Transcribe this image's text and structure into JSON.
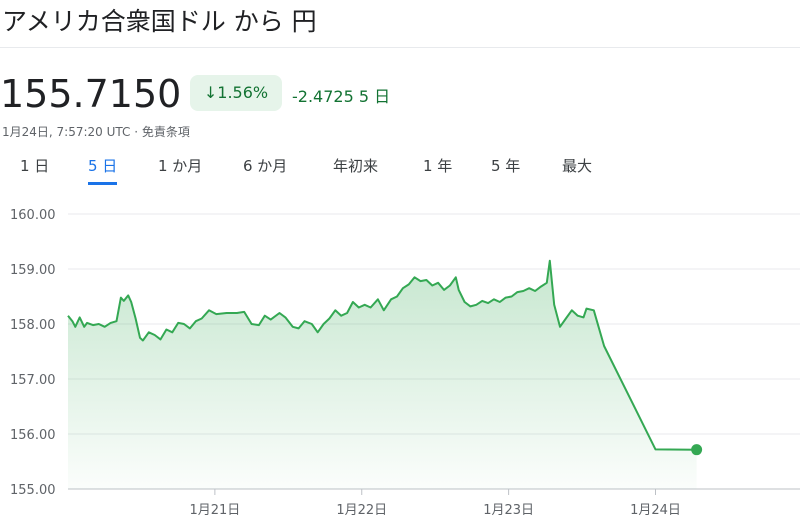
{
  "header": {
    "title": "アメリカ合衆国ドル から 円",
    "price": "155.7150",
    "change_pct": "1.56%",
    "change": "-2.4725",
    "change_period": "5 日",
    "timestamp": "1月24日, 7:57:20 UTC · 免責条項"
  },
  "tabs": [
    "1 日",
    "5 日",
    "1 か月",
    "6 か月",
    "年初来",
    "1 年",
    "5 年",
    "最大"
  ],
  "selected_tab": 1,
  "chart_data": {
    "type": "line",
    "color": "#34a853",
    "x": [
      20.0,
      20.03,
      20.05,
      20.08,
      20.11,
      20.13,
      20.17,
      20.21,
      20.25,
      20.29,
      20.33,
      20.36,
      20.38,
      20.41,
      20.43,
      20.46,
      20.49,
      20.51,
      20.55,
      20.59,
      20.63,
      20.67,
      20.71,
      20.75,
      20.79,
      20.83,
      20.87,
      20.91,
      20.96,
      21.01,
      21.08,
      21.15,
      21.2,
      21.25,
      21.3,
      21.34,
      21.38,
      21.44,
      21.48,
      21.53,
      21.57,
      21.61,
      21.66,
      21.7,
      21.74,
      21.78,
      21.82,
      21.86,
      21.9,
      21.94,
      21.98,
      22.02,
      22.06,
      22.11,
      22.15,
      22.2,
      22.24,
      22.28,
      22.32,
      22.36,
      22.4,
      22.44,
      22.48,
      22.52,
      22.56,
      22.6,
      22.64,
      22.66,
      22.7,
      22.74,
      22.78,
      22.82,
      22.86,
      22.9,
      22.94,
      22.98,
      23.02,
      23.06,
      23.1,
      23.14,
      23.18,
      23.22,
      23.26,
      23.28,
      23.31,
      23.35,
      23.39,
      23.43,
      23.47,
      23.51,
      23.53,
      23.58,
      23.65,
      24.0,
      24.28
    ],
    "values": [
      158.15,
      158.05,
      157.95,
      158.12,
      157.95,
      158.02,
      157.98,
      158.0,
      157.95,
      158.02,
      158.05,
      158.48,
      158.42,
      158.52,
      158.4,
      158.1,
      157.75,
      157.7,
      157.85,
      157.8,
      157.72,
      157.9,
      157.85,
      158.02,
      158.0,
      157.92,
      158.05,
      158.1,
      158.25,
      158.18,
      158.2,
      158.2,
      158.22,
      158.0,
      157.98,
      158.15,
      158.08,
      158.2,
      158.12,
      157.95,
      157.92,
      158.05,
      158.0,
      157.85,
      158.0,
      158.1,
      158.25,
      158.15,
      158.2,
      158.4,
      158.3,
      158.35,
      158.3,
      158.45,
      158.25,
      158.45,
      158.5,
      158.65,
      158.72,
      158.85,
      158.78,
      158.8,
      158.7,
      158.75,
      158.62,
      158.7,
      158.85,
      158.62,
      158.4,
      158.32,
      158.35,
      158.42,
      158.38,
      158.45,
      158.4,
      158.48,
      158.5,
      158.58,
      158.6,
      158.65,
      158.6,
      158.68,
      158.75,
      159.15,
      158.35,
      157.95,
      158.1,
      158.25,
      158.15,
      158.12,
      158.28,
      158.25,
      157.6,
      155.72,
      155.715
    ],
    "xlim": [
      20,
      24.8
    ],
    "ylim": [
      155,
      160
    ],
    "xticks": [
      {
        "value": 21,
        "label": "1月21日"
      },
      {
        "value": 22,
        "label": "1月22日"
      },
      {
        "value": 23,
        "label": "1月23日"
      },
      {
        "value": 24,
        "label": "1月24日"
      }
    ],
    "yticks": [
      {
        "value": 155,
        "label": "155.00"
      },
      {
        "value": 156,
        "label": "156.00"
      },
      {
        "value": 157,
        "label": "157.00"
      },
      {
        "value": 158,
        "label": "158.00"
      },
      {
        "value": 159,
        "label": "159.00"
      },
      {
        "value": 160,
        "label": "160.00"
      }
    ],
    "grid": true
  }
}
